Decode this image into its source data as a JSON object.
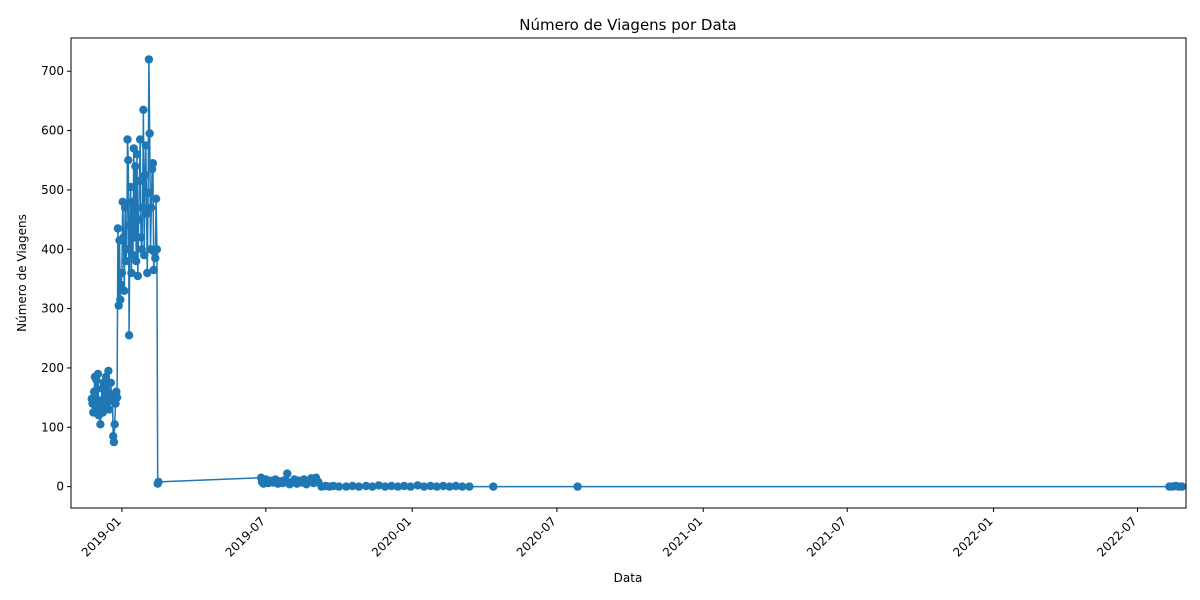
{
  "chart_data": {
    "type": "line",
    "title": "Número de Viagens por Data",
    "xlabel": "Data",
    "ylabel": "Número de Viagens",
    "x_range": [
      "2018-10-29",
      "2022-08-31"
    ],
    "ylim": [
      -36,
      756
    ],
    "y_ticks": [
      0,
      100,
      200,
      300,
      400,
      500,
      600,
      700
    ],
    "x_ticks": [
      "2019-01",
      "2019-07",
      "2020-01",
      "2020-07",
      "2021-01",
      "2021-07",
      "2022-01",
      "2022-07"
    ],
    "grid": false,
    "marker": "circle",
    "line_color": "#1f77b4",
    "series": [
      {
        "points": [
          [
            "2018-11-24",
            148
          ],
          [
            "2018-11-25",
            140
          ],
          [
            "2018-11-26",
            125
          ],
          [
            "2018-11-27",
            160
          ],
          [
            "2018-11-28",
            185
          ],
          [
            "2018-11-29",
            135
          ],
          [
            "2018-11-30",
            180
          ],
          [
            "2018-12-01",
            130
          ],
          [
            "2018-12-02",
            190
          ],
          [
            "2018-12-03",
            120
          ],
          [
            "2018-12-04",
            145
          ],
          [
            "2018-12-05",
            105
          ],
          [
            "2018-12-06",
            140
          ],
          [
            "2018-12-07",
            165
          ],
          [
            "2018-12-08",
            125
          ],
          [
            "2018-12-09",
            175
          ],
          [
            "2018-12-10",
            130
          ],
          [
            "2018-12-11",
            155
          ],
          [
            "2018-12-12",
            185
          ],
          [
            "2018-12-13",
            140
          ],
          [
            "2018-12-14",
            160
          ],
          [
            "2018-12-15",
            195
          ],
          [
            "2018-12-16",
            130
          ],
          [
            "2018-12-17",
            150
          ],
          [
            "2018-12-18",
            175
          ],
          [
            "2018-12-19",
            145
          ],
          [
            "2018-12-20",
            155
          ],
          [
            "2018-12-21",
            85
          ],
          [
            "2018-12-22",
            75
          ],
          [
            "2018-12-23",
            105
          ],
          [
            "2018-12-24",
            140
          ],
          [
            "2018-12-25",
            160
          ],
          [
            "2018-12-26",
            150
          ],
          [
            "2018-12-27",
            435
          ],
          [
            "2018-12-28",
            305
          ],
          [
            "2018-12-29",
            415
          ],
          [
            "2018-12-30",
            315
          ],
          [
            "2018-12-31",
            340
          ],
          [
            "2019-01-01",
            360
          ],
          [
            "2019-01-02",
            480
          ],
          [
            "2019-01-03",
            420
          ],
          [
            "2019-01-04",
            330
          ],
          [
            "2019-01-05",
            470
          ],
          [
            "2019-01-06",
            380
          ],
          [
            "2019-01-07",
            400
          ],
          [
            "2019-01-08",
            585
          ],
          [
            "2019-01-09",
            550
          ],
          [
            "2019-01-10",
            255
          ],
          [
            "2019-01-11",
            440
          ],
          [
            "2019-01-12",
            505
          ],
          [
            "2019-01-13",
            360
          ],
          [
            "2019-01-14",
            480
          ],
          [
            "2019-01-15",
            390
          ],
          [
            "2019-01-16",
            570
          ],
          [
            "2019-01-17",
            420
          ],
          [
            "2019-01-18",
            540
          ],
          [
            "2019-01-19",
            380
          ],
          [
            "2019-01-20",
            560
          ],
          [
            "2019-01-21",
            355
          ],
          [
            "2019-01-22",
            450
          ],
          [
            "2019-01-23",
            515
          ],
          [
            "2019-01-24",
            585
          ],
          [
            "2019-01-25",
            420
          ],
          [
            "2019-01-26",
            400
          ],
          [
            "2019-01-27",
            470
          ],
          [
            "2019-01-28",
            635
          ],
          [
            "2019-01-29",
            390
          ],
          [
            "2019-01-30",
            525
          ],
          [
            "2019-01-31",
            575
          ],
          [
            "2019-02-01",
            460
          ],
          [
            "2019-02-02",
            360
          ],
          [
            "2019-02-03",
            495
          ],
          [
            "2019-02-04",
            720
          ],
          [
            "2019-02-05",
            595
          ],
          [
            "2019-02-06",
            400
          ],
          [
            "2019-02-07",
            470
          ],
          [
            "2019-02-08",
            535
          ],
          [
            "2019-02-09",
            545
          ],
          [
            "2019-02-10",
            365
          ],
          [
            "2019-02-11",
            395
          ],
          [
            "2019-02-12",
            385
          ],
          [
            "2019-02-13",
            485
          ],
          [
            "2019-02-14",
            400
          ],
          [
            "2019-02-15",
            5
          ],
          [
            "2019-02-16",
            8
          ],
          [
            "2019-06-25",
            15
          ],
          [
            "2019-06-26",
            8
          ],
          [
            "2019-06-28",
            5
          ],
          [
            "2019-07-01",
            12
          ],
          [
            "2019-07-04",
            6
          ],
          [
            "2019-07-07",
            10
          ],
          [
            "2019-07-10",
            7
          ],
          [
            "2019-07-13",
            12
          ],
          [
            "2019-07-16",
            5
          ],
          [
            "2019-07-19",
            9
          ],
          [
            "2019-07-22",
            6
          ],
          [
            "2019-07-25",
            11
          ],
          [
            "2019-07-28",
            22
          ],
          [
            "2019-07-31",
            4
          ],
          [
            "2019-08-03",
            8
          ],
          [
            "2019-08-06",
            12
          ],
          [
            "2019-08-09",
            5
          ],
          [
            "2019-08-12",
            10
          ],
          [
            "2019-08-15",
            7
          ],
          [
            "2019-08-18",
            12
          ],
          [
            "2019-08-21",
            4
          ],
          [
            "2019-08-24",
            9
          ],
          [
            "2019-08-27",
            14
          ],
          [
            "2019-08-30",
            6
          ],
          [
            "2019-09-02",
            15
          ],
          [
            "2019-09-05",
            8
          ],
          [
            "2019-09-09",
            0
          ],
          [
            "2019-09-14",
            1
          ],
          [
            "2019-09-19",
            0
          ],
          [
            "2019-09-24",
            1
          ],
          [
            "2019-10-01",
            0
          ],
          [
            "2019-10-10",
            0
          ],
          [
            "2019-10-18",
            1
          ],
          [
            "2019-10-26",
            0
          ],
          [
            "2019-11-04",
            1
          ],
          [
            "2019-11-12",
            0
          ],
          [
            "2019-11-20",
            2
          ],
          [
            "2019-11-28",
            0
          ],
          [
            "2019-12-06",
            1
          ],
          [
            "2019-12-14",
            0
          ],
          [
            "2019-12-22",
            1
          ],
          [
            "2019-12-30",
            0
          ],
          [
            "2020-01-08",
            2
          ],
          [
            "2020-01-16",
            0
          ],
          [
            "2020-01-24",
            1
          ],
          [
            "2020-02-01",
            0
          ],
          [
            "2020-02-09",
            1
          ],
          [
            "2020-02-17",
            0
          ],
          [
            "2020-02-25",
            1
          ],
          [
            "2020-03-04",
            0
          ],
          [
            "2020-03-13",
            0
          ],
          [
            "2020-04-12",
            0
          ],
          [
            "2020-07-27",
            0
          ],
          [
            "2022-08-10",
            0
          ],
          [
            "2022-08-14",
            0
          ],
          [
            "2022-08-18",
            1
          ],
          [
            "2022-08-22",
            0
          ],
          [
            "2022-08-26",
            0
          ]
        ]
      }
    ]
  }
}
